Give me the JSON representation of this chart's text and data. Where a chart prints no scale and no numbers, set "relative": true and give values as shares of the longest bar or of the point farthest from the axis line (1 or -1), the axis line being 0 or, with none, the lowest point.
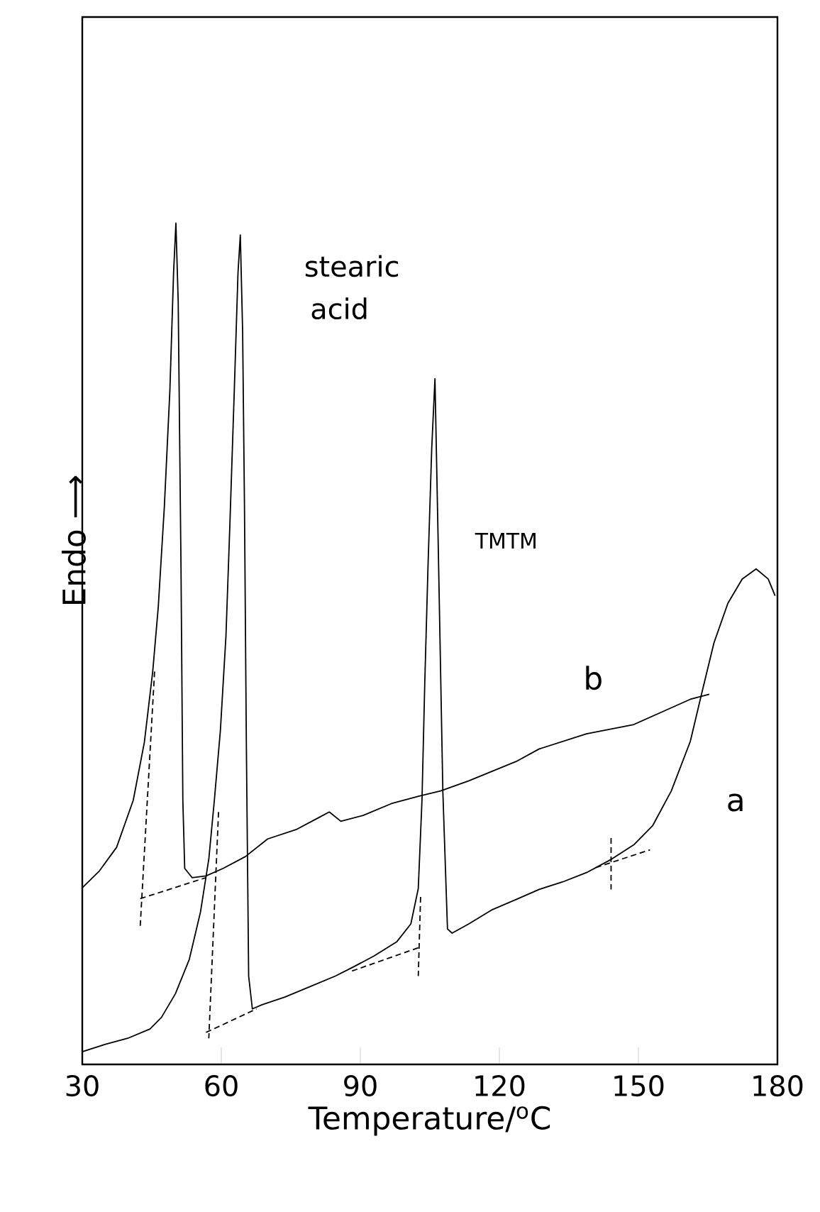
{
  "chart_data": {
    "type": "line",
    "relative": true,
    "xlabel": "Temperature/$^{o}$C",
    "ylabel": "Endo ⟶",
    "xlim": [
      30,
      180
    ],
    "xticks": [
      30,
      60,
      90,
      120,
      150,
      180
    ],
    "series": [
      {
        "color": "#000000",
        "line_style": "solid",
        "x": [
          30,
          33.7,
          37.4,
          41.0,
          43.4,
          45.2,
          46.4,
          47.7,
          48.9,
          49.7,
          50.2,
          50.7,
          51.3,
          51.7,
          52.1,
          53.7,
          56.7,
          60.4,
          65.2,
          70.0,
          76.1,
          80.9,
          83.3,
          85.8,
          90.6,
          96.7,
          102.7,
          107.3,
          113.4,
          123.6,
          128.6,
          138.8,
          149.0,
          155.1,
          161.2,
          165.3
        ],
        "values": [
          0.21,
          0.23,
          0.258,
          0.314,
          0.383,
          0.467,
          0.544,
          0.662,
          0.801,
          0.941,
          1.0,
          0.906,
          0.592,
          0.314,
          0.233,
          0.222,
          0.224,
          0.233,
          0.247,
          0.268,
          0.279,
          0.293,
          0.3,
          0.289,
          0.296,
          0.31,
          0.319,
          0.325,
          0.337,
          0.36,
          0.375,
          0.393,
          0.404,
          0.419,
          0.434,
          0.44
        ]
      },
      {
        "color": "#000000",
        "line_style": "solid",
        "x": [
          30,
          35.0,
          39.8,
          44.6,
          47.1,
          50.1,
          53.1,
          55.5,
          57.3,
          58.5,
          59.8,
          61.0,
          61.8,
          62.8,
          63.6,
          64.1,
          64.6,
          65.0,
          65.4,
          65.9,
          66.7,
          68.8,
          73.7,
          78.5,
          84.6,
          88.2,
          93.0,
          97.9,
          100.9,
          102.5,
          103.3,
          103.9,
          104.6,
          105.4,
          106.1,
          106.8,
          107.8,
          108.8,
          109.8,
          113.4,
          118.5,
          123.6,
          128.6,
          133.7,
          138.8,
          143.9,
          149.0,
          153.1,
          157.1,
          161.2,
          163.7,
          166.3,
          169.3,
          172.4,
          175.4,
          178.0,
          179.5
        ],
        "values": [
          0.015,
          0.024,
          0.031,
          0.042,
          0.056,
          0.084,
          0.125,
          0.181,
          0.244,
          0.314,
          0.397,
          0.509,
          0.634,
          0.801,
          0.941,
          0.986,
          0.871,
          0.662,
          0.383,
          0.105,
          0.066,
          0.071,
          0.08,
          0.091,
          0.105,
          0.115,
          0.129,
          0.146,
          0.167,
          0.209,
          0.314,
          0.453,
          0.592,
          0.732,
          0.815,
          0.619,
          0.325,
          0.161,
          0.156,
          0.167,
          0.184,
          0.196,
          0.208,
          0.217,
          0.228,
          0.243,
          0.261,
          0.284,
          0.325,
          0.384,
          0.442,
          0.501,
          0.548,
          0.577,
          0.589,
          0.577,
          0.557
        ]
      },
      {
        "color": "#000000",
        "line_style": "dashed",
        "x": [
          42.5,
          56.7
        ],
        "values": [
          0.197,
          0.222
        ]
      },
      {
        "color": "#000000",
        "line_style": "dashed",
        "x": [
          45.6,
          42.5
        ],
        "values": [
          0.467,
          0.164
        ]
      },
      {
        "color": "#000000",
        "line_style": "dashed",
        "x": [
          56.7,
          67.6
        ],
        "values": [
          0.038,
          0.066
        ]
      },
      {
        "color": "#000000",
        "line_style": "dashed",
        "x": [
          59.4,
          57.3
        ],
        "values": [
          0.3,
          0.031
        ]
      },
      {
        "color": "#000000",
        "line_style": "dashed",
        "x": [
          88.2,
          102.7
        ],
        "values": [
          0.111,
          0.139
        ]
      },
      {
        "color": "#000000",
        "line_style": "dashed",
        "x": [
          103.0,
          102.5
        ],
        "values": [
          0.199,
          0.105
        ]
      },
      {
        "color": "#000000",
        "line_style": "dashed",
        "x": [
          140.8,
          152.5
        ],
        "values": [
          0.234,
          0.255
        ]
      },
      {
        "color": "#000000",
        "line_style": "dashed",
        "x": [
          144.1,
          144.1
        ],
        "values": [
          0.269,
          0.208
        ]
      }
    ],
    "annotations": [
      "stearic acid",
      "TMTM",
      "b",
      "a"
    ]
  }
}
